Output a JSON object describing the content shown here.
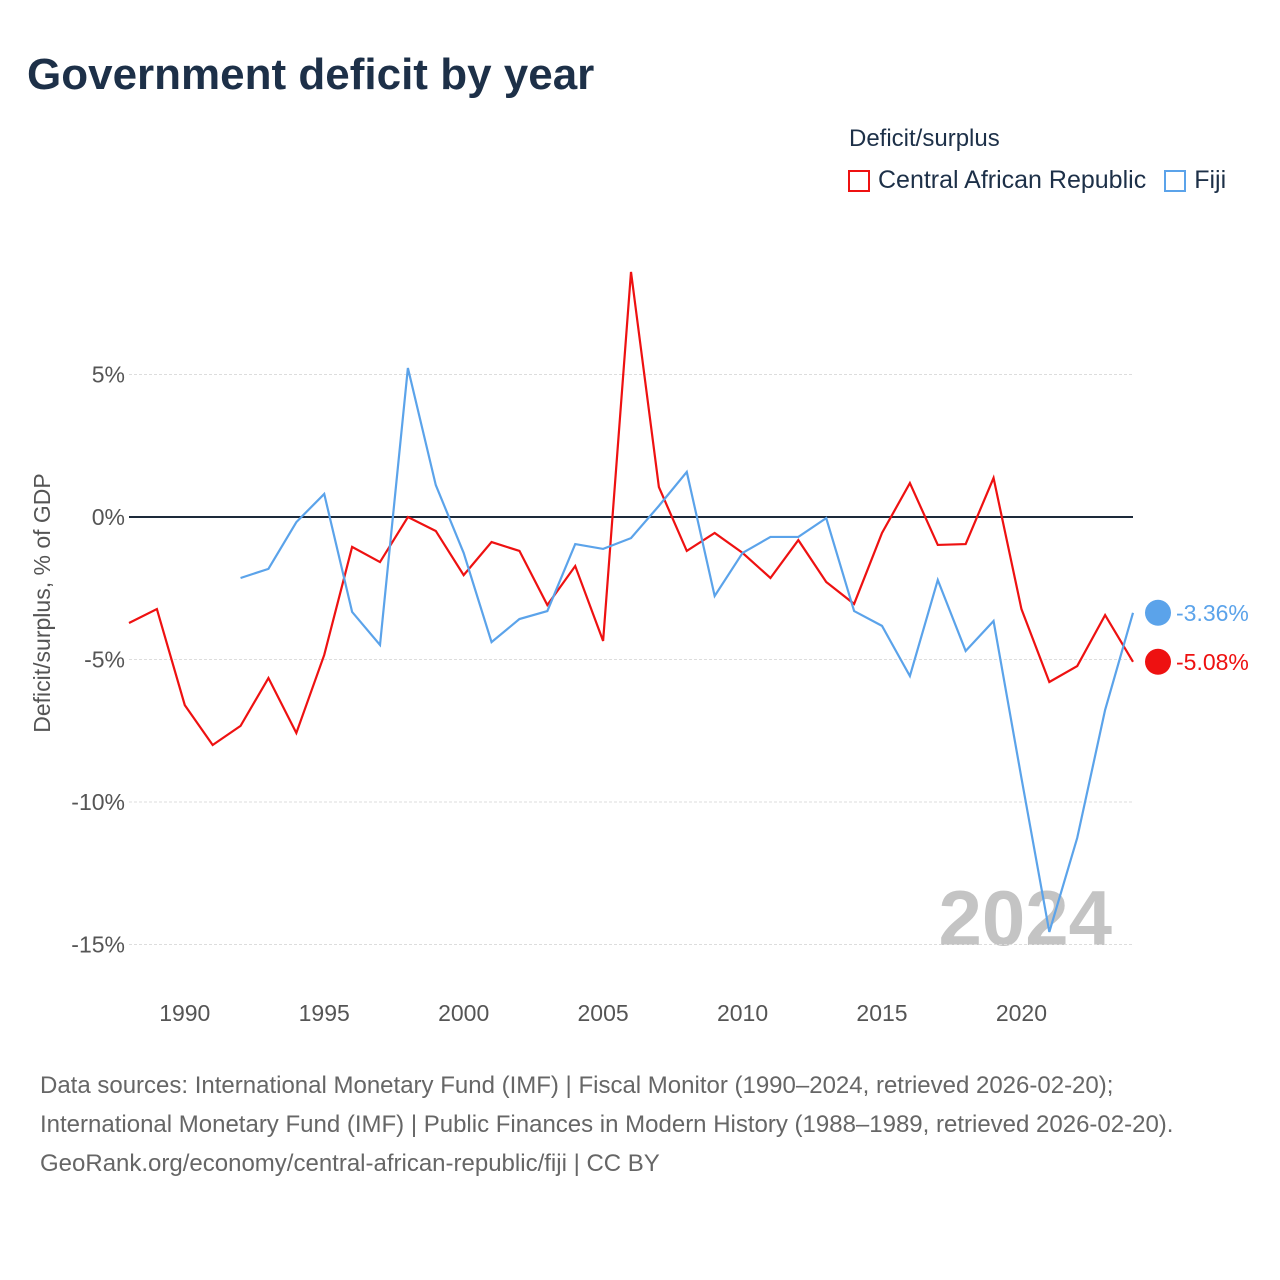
{
  "title": "Government deficit by year",
  "legend": {
    "title": "Deficit/surplus",
    "items": [
      "Central African Republic",
      "Fiji"
    ]
  },
  "source": {
    "line1": "Data sources: International Monetary Fund (IMF) | Fiscal Monitor (1990–2024, retrieved 2026-02-20); International Monetary Fund (IMF) | Public Finances in Modern History (1988–1989, retrieved 2026-02-20).",
    "line2": "GeoRank.org/economy/central-african-republic/fiji | CC BY"
  },
  "chart_data": {
    "type": "line",
    "title": "Government deficit by year",
    "ylabel": "Deficit/surplus, % of GDP",
    "xlabel": "",
    "xlim": [
      1988,
      2024
    ],
    "ylim": [
      -16.5,
      10
    ],
    "yticks": [
      5,
      0,
      -5,
      -10,
      -15
    ],
    "ytick_labels": [
      "5%",
      "0%",
      "-5%",
      "-10%",
      "-15%"
    ],
    "xticks": [
      1990,
      1995,
      2000,
      2005,
      2010,
      2015,
      2020
    ],
    "year_watermark": "2024",
    "series": [
      {
        "name": "Central African Republic",
        "color": "#ee1111",
        "start": 1988,
        "values": [
          -3.72,
          -3.23,
          -6.6,
          -8.0,
          -7.33,
          -5.65,
          -7.58,
          -4.84,
          -1.05,
          -1.58,
          0.0,
          -0.49,
          -2.04,
          -0.88,
          -1.19,
          -3.09,
          -1.72,
          -4.35,
          8.6,
          1.05,
          -1.19,
          -0.56,
          -1.26,
          -2.14,
          -0.81,
          -2.28,
          -3.05,
          -0.56,
          1.19,
          -0.98,
          -0.95,
          1.37,
          -3.23,
          -5.79,
          -5.23,
          -3.44,
          -5.08
        ],
        "end_label": "-5.08%"
      },
      {
        "name": "Fiji",
        "color": "#5ba3ea",
        "start": 1992,
        "values": [
          -2.14,
          -1.82,
          -0.18,
          0.81,
          -3.33,
          -4.49,
          5.23,
          1.12,
          -1.26,
          -4.39,
          -3.58,
          -3.3,
          -0.95,
          -1.12,
          -0.74,
          0.39,
          1.58,
          -2.77,
          -1.26,
          -0.7,
          -0.7,
          -0.04,
          -3.3,
          -3.82,
          -5.58,
          -2.21,
          -4.7,
          -3.65,
          -9.16,
          -14.56,
          -11.26,
          -6.77,
          -3.36
        ],
        "end_label": "-3.36%"
      }
    ]
  }
}
